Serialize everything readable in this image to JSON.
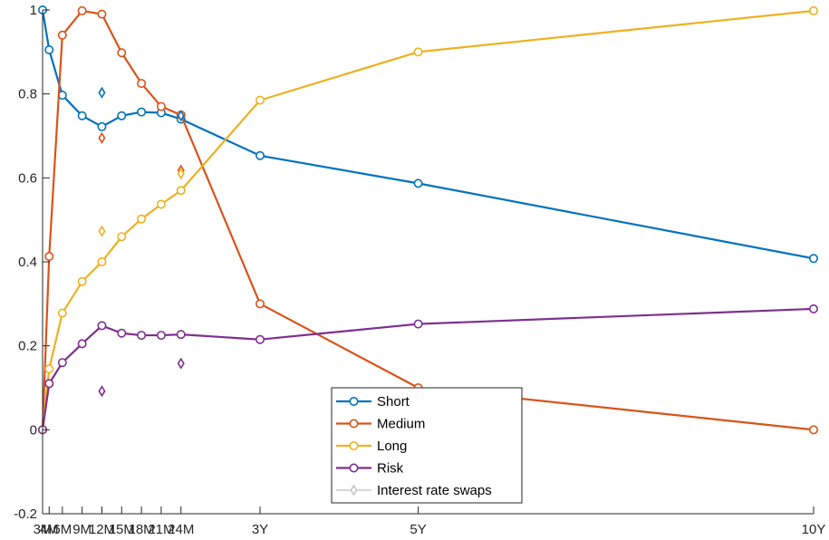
{
  "chart_data": {
    "type": "line",
    "x": [
      "3M",
      "4M",
      "6M",
      "9M",
      "12M",
      "15M",
      "18M",
      "21M",
      "24M",
      "3Y",
      "5Y",
      "10Y"
    ],
    "x_months": [
      3,
      4,
      6,
      9,
      12,
      15,
      18,
      21,
      24,
      36,
      60,
      120
    ],
    "ylim": [
      -0.2,
      1
    ],
    "yticks": [
      -0.2,
      0,
      0.2,
      0.4,
      0.6,
      0.8,
      1
    ],
    "ytick_labels": [
      "-0.2",
      "0",
      "0.2",
      "0.4",
      "0.6",
      "0.8",
      "1"
    ],
    "grid": false,
    "legend_position": "bottom-center",
    "series": [
      {
        "name": "Short",
        "color": "#0072BD",
        "values": [
          1.0,
          0.905,
          0.797,
          0.748,
          0.722,
          0.748,
          0.757,
          0.755,
          0.74,
          0.653,
          0.587,
          0.408
        ]
      },
      {
        "name": "Medium",
        "color": "#D95319",
        "values": [
          0.0,
          0.413,
          0.94,
          0.998,
          0.99,
          0.898,
          0.825,
          0.77,
          0.75,
          0.3,
          0.1,
          0.0
        ]
      },
      {
        "name": "Long",
        "color": "#EDB120",
        "values": [
          0.0,
          0.145,
          0.278,
          0.353,
          0.4,
          0.46,
          0.502,
          0.537,
          0.57,
          0.785,
          0.9,
          0.998
        ]
      },
      {
        "name": "Risk",
        "color": "#7E2F8E",
        "values": [
          0.0,
          0.11,
          0.16,
          0.205,
          0.248,
          0.23,
          0.225,
          0.225,
          0.227,
          0.215,
          0.252,
          0.288
        ]
      }
    ],
    "markers": {
      "name": "Interest rate swaps",
      "legend_color": "#BFBFBF",
      "points": [
        {
          "x": "12M",
          "y": 0.803,
          "color": "#0072BD"
        },
        {
          "x": "12M",
          "y": 0.695,
          "color": "#D95319"
        },
        {
          "x": "12M",
          "y": 0.473,
          "color": "#EDB120"
        },
        {
          "x": "12M",
          "y": 0.092,
          "color": "#7E2F8E"
        },
        {
          "x": "24M",
          "y": 0.748,
          "color": "#0072BD"
        },
        {
          "x": "24M",
          "y": 0.618,
          "color": "#D95319"
        },
        {
          "x": "24M",
          "y": 0.61,
          "color": "#EDB120"
        },
        {
          "x": "24M",
          "y": 0.158,
          "color": "#7E2F8E"
        }
      ]
    }
  }
}
